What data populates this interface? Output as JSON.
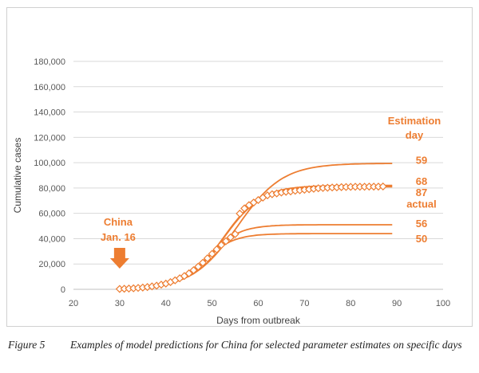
{
  "caption": {
    "figure_label": "Figure 5",
    "text": "Examples of model predictions for China for selected parameter estimates on specific days"
  },
  "colors": {
    "series": "#ED7D31",
    "grid": "#d9d9d9",
    "axis": "#bfbfbf"
  },
  "chart_data": {
    "type": "line",
    "title": "",
    "xlabel": "Days from outbreak",
    "ylabel": "Cumulative cases",
    "xlim": [
      20,
      100
    ],
    "ylim": [
      0,
      180000
    ],
    "x_ticks": [
      20,
      30,
      40,
      50,
      60,
      70,
      80,
      90,
      100
    ],
    "y_ticks": [
      0,
      20000,
      40000,
      60000,
      80000,
      100000,
      120000,
      140000,
      160000,
      180000
    ],
    "y_tick_labels": [
      "0",
      "20,000",
      "40,000",
      "60,000",
      "80,000",
      "100,000",
      "120,000",
      "140,000",
      "160,000",
      "180,000"
    ],
    "grid": "horizontal",
    "legend_title": [
      "Estimation",
      "day"
    ],
    "series": [
      {
        "name": "59",
        "kind": "line",
        "K": 99500,
        "r": 0.205,
        "t0": 55.5,
        "x_range": [
          30,
          89
        ]
      },
      {
        "name": "68",
        "kind": "line",
        "K": 82000,
        "r": 0.245,
        "t0": 52.5,
        "x_range": [
          30,
          89
        ]
      },
      {
        "name": "87",
        "kind": "line",
        "K": 81000,
        "r": 0.245,
        "t0": 52.5,
        "x_range": [
          30,
          89
        ]
      },
      {
        "name": "56",
        "kind": "line",
        "K": 51000,
        "r": 0.29,
        "t0": 49.0,
        "x_range": [
          30,
          89
        ]
      },
      {
        "name": "50",
        "kind": "line",
        "K": 44000,
        "r": 0.3,
        "t0": 48.0,
        "x_range": [
          30,
          89
        ]
      },
      {
        "name": "actual",
        "kind": "markers",
        "points": [
          [
            30,
            300
          ],
          [
            31,
            450
          ],
          [
            32,
            600
          ],
          [
            33,
            800
          ],
          [
            34,
            1100
          ],
          [
            35,
            1400
          ],
          [
            36,
            1800
          ],
          [
            37,
            2300
          ],
          [
            38,
            2900
          ],
          [
            39,
            3700
          ],
          [
            40,
            4500
          ],
          [
            41,
            5700
          ],
          [
            42,
            7100
          ],
          [
            43,
            8700
          ],
          [
            44,
            10500
          ],
          [
            45,
            12600
          ],
          [
            46,
            15100
          ],
          [
            47,
            17900
          ],
          [
            48,
            21000
          ],
          [
            49,
            24500
          ],
          [
            50,
            28000
          ],
          [
            51,
            31500
          ],
          [
            52,
            35000
          ],
          [
            53,
            38000
          ],
          [
            54,
            41000
          ],
          [
            55,
            43600
          ],
          [
            56,
            59800
          ],
          [
            57,
            63900
          ],
          [
            58,
            66500
          ],
          [
            59,
            68500
          ],
          [
            60,
            70500
          ],
          [
            61,
            72400
          ],
          [
            62,
            74200
          ],
          [
            63,
            75100
          ],
          [
            64,
            75700
          ],
          [
            65,
            76400
          ],
          [
            66,
            77000
          ],
          [
            67,
            77300
          ],
          [
            68,
            77800
          ],
          [
            69,
            78200
          ],
          [
            70,
            78600
          ],
          [
            71,
            79000
          ],
          [
            72,
            79400
          ],
          [
            73,
            79800
          ],
          [
            74,
            80000
          ],
          [
            75,
            80200
          ],
          [
            76,
            80400
          ],
          [
            77,
            80500
          ],
          [
            78,
            80700
          ],
          [
            79,
            80800
          ],
          [
            80,
            80900
          ],
          [
            81,
            81000
          ],
          [
            82,
            81000
          ],
          [
            83,
            81000
          ],
          [
            84,
            81100
          ],
          [
            85,
            81100
          ],
          [
            86,
            81100
          ],
          [
            87,
            81200
          ]
        ]
      }
    ],
    "series_labels": [
      {
        "text": "59",
        "y": 101500
      },
      {
        "text": "68",
        "y": 85000
      },
      {
        "text": "87",
        "y": 76000
      },
      {
        "text": "actual",
        "y": 67000
      },
      {
        "text": "56",
        "y": 51500
      },
      {
        "text": "50",
        "y": 39500
      }
    ],
    "annotation": {
      "lines": [
        "China",
        "Jan. 16"
      ],
      "arrow_x": 30
    }
  }
}
